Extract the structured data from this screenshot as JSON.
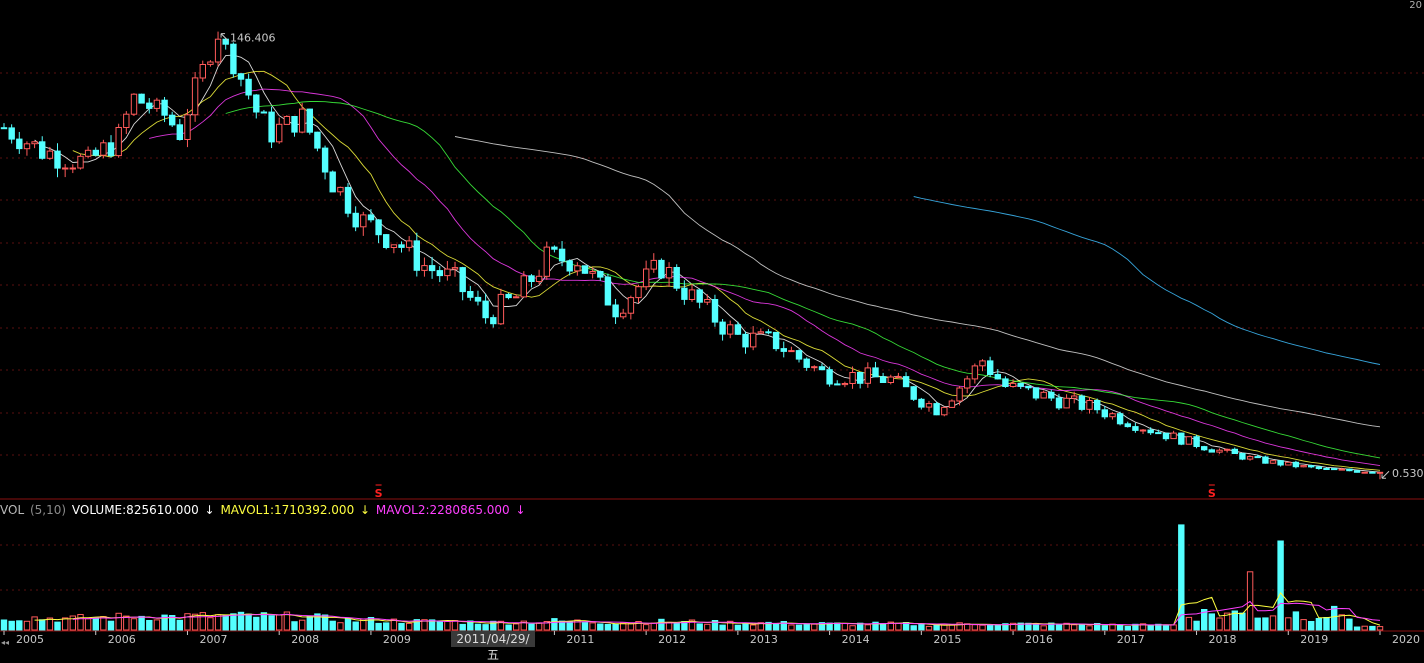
{
  "top_right_label": "20",
  "volume_legend": {
    "indicator": "VOL",
    "params": "(5,10)",
    "volume": "VOLUME:825610.000",
    "mavol1": "MAVOL1:1710392.000",
    "mavol2": "MAVOL2:2280865.000",
    "down_arrow": "↓"
  },
  "cursor_date": "2011/04/29/五",
  "nav_glyph": "◂◂",
  "colors": {
    "background": "#000000",
    "up": "#ff5a5a",
    "down": "#54ffff",
    "ma5": "#ffffff",
    "ma10": "#ffff40",
    "ma20": "#ff40ff",
    "ma30": "#40ff40",
    "ma60": "#e0e0e0",
    "ma120": "#40c0ff",
    "grid": "#5a1010",
    "axis_text": "#c8c8c8",
    "signal": "#ff2020"
  },
  "chart_data": {
    "type": "candlestick",
    "period": "monthly",
    "x_axis_labels": [
      "2005",
      "2006",
      "2007",
      "2008",
      "2009",
      "2010",
      "2011",
      "2012",
      "2013",
      "2014",
      "2015",
      "2016",
      "2017",
      "2018",
      "2019",
      "2020"
    ],
    "ylim": [
      0,
      150
    ],
    "grid": true,
    "annotations": [
      {
        "label": "146.406",
        "type": "max_high",
        "date": "2007-05"
      },
      {
        "label": "0.530",
        "type": "last_low",
        "date": "2020-01"
      }
    ],
    "signal_markers": [
      {
        "label": "S",
        "date": "2009-02"
      },
      {
        "label": "S",
        "date": "2018-03"
      }
    ],
    "close_anchors": [
      [
        "2005-01",
        52
      ],
      [
        "2005-06",
        43
      ],
      [
        "2005-12",
        39
      ],
      [
        "2006-04",
        48
      ],
      [
        "2006-06",
        68
      ],
      [
        "2006-10",
        58
      ],
      [
        "2006-12",
        50
      ],
      [
        "2007-02",
        75
      ],
      [
        "2007-04",
        110
      ],
      [
        "2007-05",
        140
      ],
      [
        "2007-07",
        97
      ],
      [
        "2007-10",
        60
      ],
      [
        "2007-12",
        50
      ],
      [
        "2008-04",
        57
      ],
      [
        "2008-08",
        34
      ],
      [
        "2008-12",
        25
      ],
      [
        "2009-04",
        22
      ],
      [
        "2009-08",
        18
      ],
      [
        "2009-12",
        16
      ],
      [
        "2010-04",
        12
      ],
      [
        "2010-08",
        14
      ],
      [
        "2010-12",
        19
      ],
      [
        "2011-04",
        19
      ],
      [
        "2011-09",
        13
      ],
      [
        "2012-03",
        18
      ],
      [
        "2012-07",
        14
      ],
      [
        "2013-01",
        10
      ],
      [
        "2013-06",
        9.5
      ],
      [
        "2013-12",
        7
      ],
      [
        "2014-09",
        6.5
      ],
      [
        "2015-03",
        4.5
      ],
      [
        "2015-09",
        8
      ],
      [
        "2015-12",
        6
      ],
      [
        "2016-12",
        4.5
      ],
      [
        "2017-12",
        2.5
      ],
      [
        "2018-09",
        1.5
      ],
      [
        "2019-06",
        1.0
      ],
      [
        "2020-01",
        0.9
      ]
    ],
    "series": [
      {
        "name": "MA5",
        "period": 5
      },
      {
        "name": "MA10",
        "period": 10
      },
      {
        "name": "MA20",
        "period": 20
      },
      {
        "name": "MA30",
        "period": 30
      },
      {
        "name": "MA60",
        "period": 60
      },
      {
        "name": "MA120",
        "period": 120
      }
    ],
    "volume": {
      "type": "bar",
      "spike_months": [
        "2017-11",
        "2018-08",
        "2018-12"
      ],
      "series": [
        {
          "name": "MAVOL1",
          "period": 5
        },
        {
          "name": "MAVOL2",
          "period": 10
        }
      ]
    }
  }
}
